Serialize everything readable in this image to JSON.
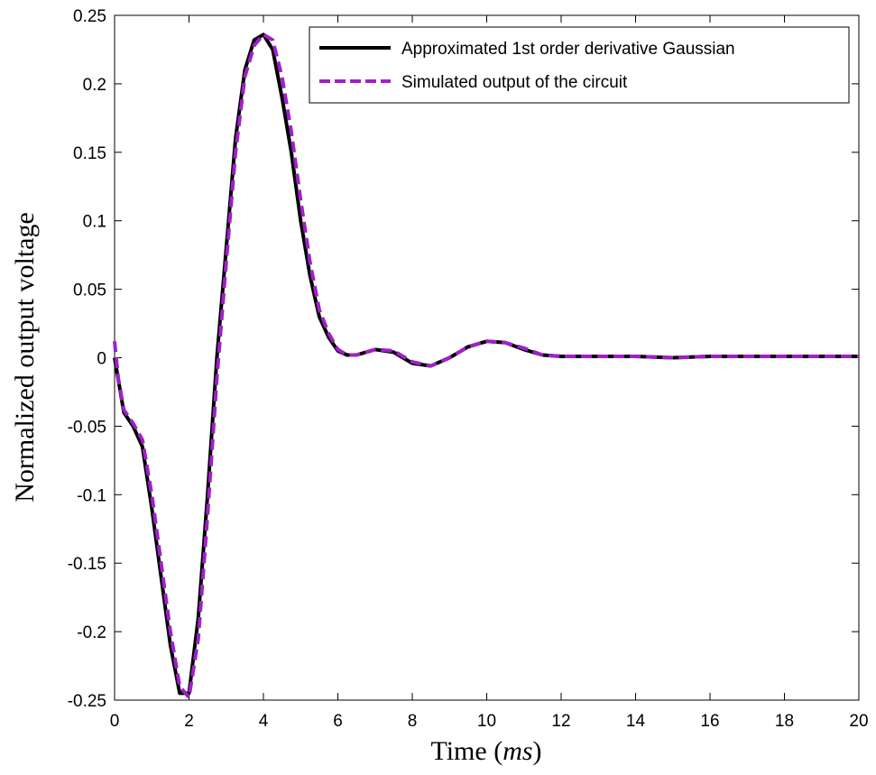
{
  "chart_data": {
    "type": "line",
    "title": "",
    "xlabel": "Time (ms)",
    "xlabel_prefix": "Time (",
    "xlabel_unit": "ms",
    "xlabel_suffix": ")",
    "ylabel": "Normalized output voltage",
    "xlim": [
      0,
      20
    ],
    "ylim": [
      -0.25,
      0.25
    ],
    "xticks": [
      "0",
      "2",
      "4",
      "6",
      "8",
      "10",
      "12",
      "14",
      "16",
      "18",
      "20"
    ],
    "yticks": [
      "-0.25",
      "-0.2",
      "-0.15",
      "-0.1",
      "-0.05",
      "0",
      "0.05",
      "0.1",
      "0.15",
      "0.2",
      "0.25"
    ],
    "grid": false,
    "legend_position": "top-right",
    "series": [
      {
        "name": "Approximated 1st order derivative Gaussian",
        "color": "#000000",
        "style": "solid",
        "x": [
          0,
          0.25,
          0.5,
          0.75,
          1.0,
          1.25,
          1.5,
          1.75,
          2.0,
          2.25,
          2.5,
          2.75,
          3.0,
          3.25,
          3.5,
          3.75,
          4.0,
          4.25,
          4.5,
          4.75,
          5.0,
          5.25,
          5.5,
          5.75,
          6.0,
          6.25,
          6.5,
          7.0,
          7.5,
          8.0,
          8.5,
          9.0,
          9.5,
          10.0,
          10.5,
          11.0,
          11.5,
          12.0,
          13.0,
          14.0,
          15.0,
          16.0,
          17.0,
          18.0,
          19.0,
          20.0
        ],
        "values": [
          0.0,
          -0.04,
          -0.05,
          -0.065,
          -0.11,
          -0.16,
          -0.21,
          -0.245,
          -0.245,
          -0.19,
          -0.1,
          0.0,
          0.08,
          0.16,
          0.21,
          0.232,
          0.236,
          0.225,
          0.19,
          0.15,
          0.1,
          0.06,
          0.03,
          0.015,
          0.005,
          0.002,
          0.002,
          0.006,
          0.004,
          -0.004,
          -0.006,
          0.0,
          0.008,
          0.012,
          0.011,
          0.006,
          0.002,
          0.001,
          0.001,
          0.001,
          0.0,
          0.001,
          0.001,
          0.001,
          0.001,
          0.001
        ]
      },
      {
        "name": "Simulated output of the circuit",
        "color": "#a020c8",
        "style": "dashed",
        "x": [
          0,
          0.1,
          0.25,
          0.5,
          0.75,
          1.0,
          1.25,
          1.5,
          1.75,
          2.0,
          2.25,
          2.5,
          2.75,
          3.0,
          3.25,
          3.5,
          3.75,
          4.0,
          4.25,
          4.5,
          4.75,
          5.0,
          5.25,
          5.5,
          5.75,
          6.0,
          6.25,
          6.5,
          7.0,
          7.5,
          8.0,
          8.5,
          9.0,
          9.5,
          10.0,
          10.5,
          11.0,
          11.5,
          12.0,
          13.0,
          14.0,
          15.0,
          16.0,
          17.0,
          18.0,
          19.0,
          20.0
        ],
        "values": [
          0.012,
          -0.015,
          -0.038,
          -0.048,
          -0.06,
          -0.1,
          -0.15,
          -0.2,
          -0.24,
          -0.248,
          -0.205,
          -0.115,
          -0.015,
          0.07,
          0.15,
          0.205,
          0.228,
          0.236,
          0.232,
          0.205,
          0.165,
          0.115,
          0.07,
          0.035,
          0.018,
          0.006,
          0.002,
          0.002,
          0.006,
          0.005,
          -0.003,
          -0.006,
          0.0,
          0.008,
          0.012,
          0.011,
          0.007,
          0.002,
          0.001,
          0.001,
          0.001,
          0.0,
          0.001,
          0.001,
          0.001,
          0.001,
          0.001
        ]
      }
    ]
  }
}
